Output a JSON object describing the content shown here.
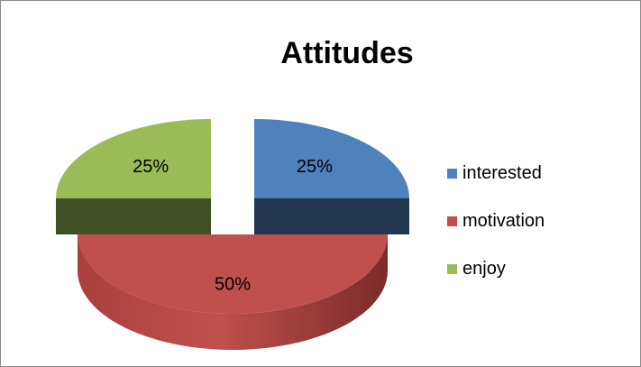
{
  "chart_data": {
    "type": "pie",
    "style": "3d-exploded",
    "title": "Attitudes",
    "categories": [
      "interested",
      "motivation",
      "enjoy"
    ],
    "values": [
      25,
      50,
      25
    ],
    "data_labels": [
      "25%",
      "50%",
      "25%"
    ],
    "colors": [
      "#4F81BD",
      "#C0504D",
      "#9BBB59"
    ],
    "legend_position": "right"
  }
}
